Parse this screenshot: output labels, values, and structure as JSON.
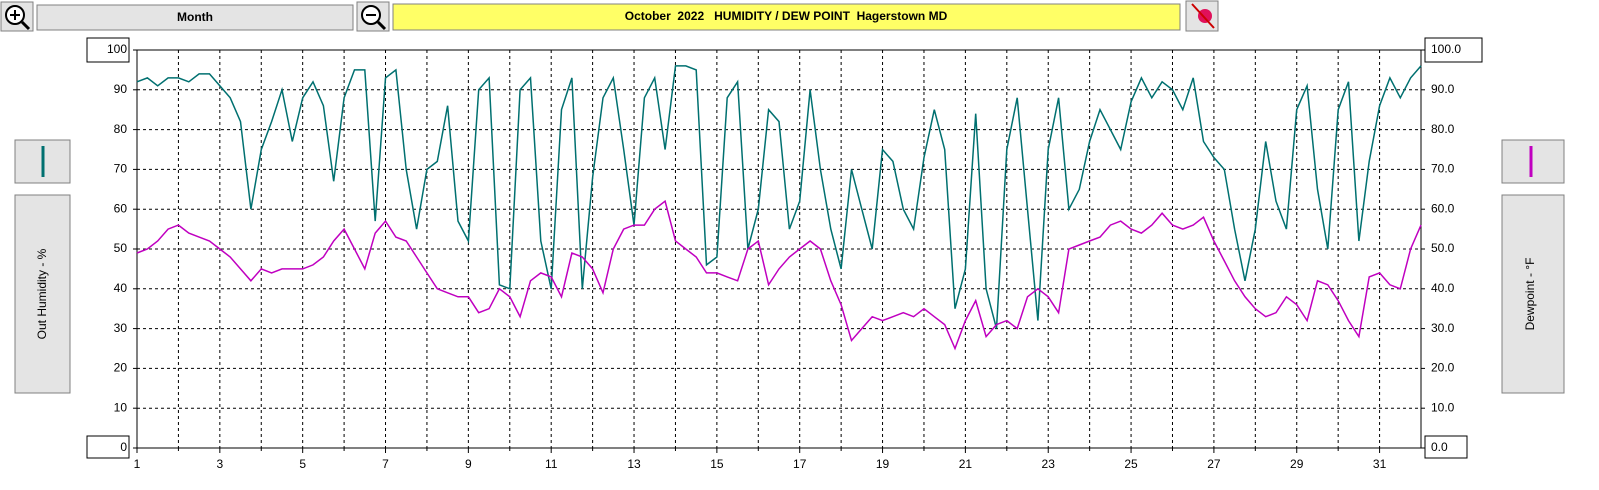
{
  "toolbar": {
    "period": "Month"
  },
  "chart_data": {
    "type": "line",
    "title": "October  2022   HUMIDITY / DEW POINT  Hagerstown MD",
    "ylabel": "Out Humidity - %",
    "y2label": "Dewpoint - °F",
    "x": [
      1,
      1.25,
      1.5,
      1.75,
      2,
      2.25,
      2.5,
      2.75,
      3,
      3.25,
      3.5,
      3.75,
      4,
      4.25,
      4.5,
      4.75,
      5,
      5.25,
      5.5,
      5.75,
      6,
      6.25,
      6.5,
      6.75,
      7,
      7.25,
      7.5,
      7.75,
      8,
      8.25,
      8.5,
      8.75,
      9,
      9.25,
      9.5,
      9.75,
      10,
      10.25,
      10.5,
      10.75,
      11,
      11.25,
      11.5,
      11.75,
      12,
      12.25,
      12.5,
      12.75,
      13,
      13.25,
      13.5,
      13.75,
      14,
      14.25,
      14.5,
      14.75,
      15,
      15.25,
      15.5,
      15.75,
      16,
      16.25,
      16.5,
      16.75,
      17,
      17.25,
      17.5,
      17.75,
      18,
      18.25,
      18.5,
      18.75,
      19,
      19.25,
      19.5,
      19.75,
      20,
      20.25,
      20.5,
      20.75,
      21,
      21.25,
      21.5,
      21.75,
      22,
      22.25,
      22.5,
      22.75,
      23,
      23.25,
      23.5,
      23.75,
      24,
      24.25,
      24.5,
      24.75,
      25,
      25.25,
      25.5,
      25.75,
      26,
      26.25,
      26.5,
      26.75,
      27,
      27.25,
      27.5,
      27.75,
      28,
      28.25,
      28.5,
      28.75,
      29,
      29.25,
      29.5,
      29.75,
      30,
      30.25,
      30.5,
      30.75,
      31,
      31.25,
      31.5,
      31.75,
      32
    ],
    "series": [
      {
        "name": "Out Humidity",
        "color": "#007070",
        "axis": "y",
        "values": [
          92,
          93,
          91,
          93,
          93,
          92,
          94,
          94,
          91,
          88,
          82,
          60,
          75,
          82,
          90,
          77,
          88,
          92,
          86,
          67,
          88,
          95,
          95,
          57,
          93,
          95,
          70,
          55,
          70,
          72,
          86,
          57,
          52,
          90,
          93,
          41,
          40,
          90,
          93,
          52,
          40,
          85,
          93,
          40,
          68,
          88,
          93,
          75,
          56,
          88,
          93,
          75,
          96,
          96,
          95,
          46,
          48,
          88,
          92,
          50,
          60,
          85,
          82,
          55,
          62,
          90,
          70,
          55,
          45,
          70,
          60,
          50,
          75,
          72,
          60,
          55,
          73,
          85,
          75,
          35,
          45,
          84,
          40,
          30,
          75,
          88,
          60,
          32,
          75,
          88,
          60,
          65,
          77,
          85,
          80,
          75,
          87,
          93,
          88,
          92,
          90,
          85,
          93,
          77,
          73,
          70,
          55,
          42,
          55,
          77,
          62,
          55,
          85,
          91,
          65,
          50,
          85,
          92,
          52,
          72,
          86,
          93,
          88,
          93,
          96
        ]
      },
      {
        "name": "Dewpoint",
        "color": "#c000c0",
        "axis": "y2",
        "values": [
          49,
          50,
          52,
          55,
          56,
          54,
          53,
          52,
          50,
          48,
          45,
          42,
          45,
          44,
          45,
          45,
          45,
          46,
          48,
          52,
          55,
          50,
          45,
          54,
          57,
          53,
          52,
          48,
          44,
          40,
          39,
          38,
          38,
          34,
          35,
          40,
          38,
          33,
          42,
          44,
          43,
          38,
          49,
          48,
          45,
          39,
          50,
          55,
          56,
          56,
          60,
          62,
          52,
          50,
          48,
          44,
          44,
          43,
          42,
          50,
          52,
          41,
          45,
          48,
          50,
          52,
          50,
          42,
          36,
          27,
          30,
          33,
          32,
          33,
          34,
          33,
          35,
          33,
          31,
          25,
          32,
          37,
          28,
          31,
          32,
          30,
          38,
          40,
          38,
          34,
          50,
          51,
          52,
          53,
          56,
          57,
          55,
          54,
          56,
          59,
          56,
          55,
          56,
          58,
          52,
          47,
          42,
          38,
          35,
          33,
          34,
          38,
          36,
          32,
          42,
          41,
          37,
          32,
          28,
          43,
          44,
          41,
          40,
          50,
          56
        ]
      }
    ],
    "xlim": [
      1,
      32
    ],
    "xticks": [
      1,
      3,
      5,
      7,
      9,
      11,
      13,
      15,
      17,
      19,
      21,
      23,
      25,
      27,
      29,
      31
    ],
    "xminorticks": [
      2,
      4,
      6,
      8,
      10,
      12,
      14,
      16,
      18,
      20,
      22,
      24,
      26,
      28,
      30
    ],
    "ylim": [
      0,
      100
    ],
    "yticks": [
      100,
      90,
      80,
      70,
      60,
      50,
      40,
      30,
      20,
      10,
      0
    ],
    "y2lim": [
      0,
      100
    ],
    "y2ticks": [
      {
        "value": 100,
        "label": "100.0"
      },
      {
        "value": 90,
        "label": "90.0"
      },
      {
        "value": 80,
        "label": "80.0"
      },
      {
        "value": 70,
        "label": "70.0"
      },
      {
        "value": 60,
        "label": "60.0"
      },
      {
        "value": 50,
        "label": "50.0"
      },
      {
        "value": 40,
        "label": "40.0"
      },
      {
        "value": 30,
        "label": "30.0"
      },
      {
        "value": 20,
        "label": "20.0"
      },
      {
        "value": 10,
        "label": "10.0"
      },
      {
        "value": 0,
        "label": "0.0"
      }
    ],
    "grid": true
  }
}
